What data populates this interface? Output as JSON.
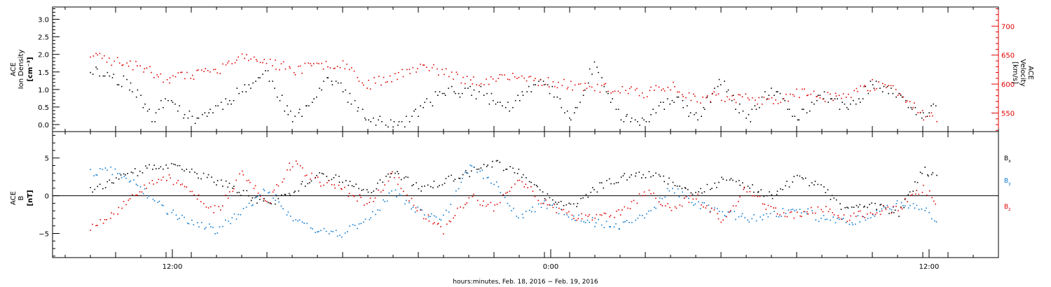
{
  "chart_data": [
    {
      "type": "scatter",
      "panel": "top",
      "ylabel_left": [
        "ACE",
        "Ion Density",
        "[cm⁻³]"
      ],
      "ylabel_right": [
        "ACE",
        "Velocity",
        "[km/s]"
      ],
      "yticks_left": [
        {
          "value": 0.0,
          "label": "0.0"
        },
        {
          "value": 0.5,
          "label": "0.5"
        },
        {
          "value": 1.0,
          "label": "1.0"
        },
        {
          "value": 1.5,
          "label": "1.5"
        },
        {
          "value": 2.0,
          "label": "2.0"
        },
        {
          "value": 2.5,
          "label": "2.5"
        },
        {
          "value": 3.0,
          "label": "3.0"
        }
      ],
      "yticks_right": [
        {
          "value": 550,
          "label": "550"
        },
        {
          "value": 600,
          "label": "600"
        },
        {
          "value": 650,
          "label": "650"
        },
        {
          "value": 700,
          "label": "700"
        }
      ],
      "ylim_left": [
        -0.2,
        3.35
      ],
      "ylim_right": [
        518,
        733
      ],
      "series": [
        {
          "axis": "left",
          "color": "#000000",
          "x_hours": [
            0.0,
            1.5,
            2.5,
            3.0,
            4.0,
            5.0,
            6.0,
            7.0,
            8.0,
            9.5,
            11.0,
            12.5,
            14.0,
            15.5,
            16.5,
            18.0,
            19.0,
            20.0,
            21.0,
            22.0,
            23.0,
            24.0,
            25.0,
            26.0,
            27.0,
            28.0,
            29.0,
            30.0,
            31.0,
            32.0,
            33.0,
            33.5
          ],
          "values": [
            1.6,
            1.2,
            0.2,
            0.8,
            0.15,
            0.5,
            1.0,
            1.5,
            0.1,
            1.4,
            0.1,
            0.1,
            1.0,
            0.9,
            0.5,
            1.3,
            0.15,
            1.8,
            0.2,
            0.1,
            0.8,
            0.2,
            1.2,
            0.15,
            1.0,
            0.2,
            0.9,
            0.4,
            1.2,
            0.8,
            0.3,
            0.5
          ]
        },
        {
          "axis": "right",
          "color": "#e00000",
          "x_hours": [
            0.0,
            1.0,
            2.0,
            3.0,
            4.0,
            5.0,
            6.0,
            7.0,
            8.0,
            9.0,
            10.0,
            11.0,
            12.0,
            13.0,
            14.0,
            15.0,
            16.0,
            17.0,
            18.0,
            19.0,
            20.0,
            21.0,
            22.0,
            23.0,
            24.0,
            25.0,
            26.0,
            27.0,
            28.0,
            29.0,
            30.0,
            31.0,
            32.0,
            33.0,
            33.5
          ],
          "values": [
            650,
            640,
            630,
            610,
            615,
            625,
            645,
            640,
            625,
            632,
            638,
            600,
            615,
            630,
            622,
            605,
            610,
            612,
            605,
            600,
            595,
            590,
            585,
            600,
            575,
            580,
            575,
            570,
            585,
            580,
            580,
            600,
            590,
            545,
            545
          ]
        }
      ]
    },
    {
      "type": "scatter",
      "panel": "bottom",
      "ylabel_left": [
        "ACE",
        "B",
        "[nT]"
      ],
      "yticks_left": [
        {
          "value": -5,
          "label": "−5"
        },
        {
          "value": 0,
          "label": "0"
        },
        {
          "value": 5,
          "label": "5"
        }
      ],
      "ylim_left": [
        -8.2,
        8.5
      ],
      "zero_line": true,
      "series": [
        {
          "name": "Bx",
          "color": "#000000",
          "x_hours": [
            0.0,
            1.0,
            2.0,
            3.0,
            4.0,
            5.0,
            6.0,
            7.0,
            8.0,
            9.0,
            10.0,
            11.0,
            12.0,
            13.0,
            14.0,
            15.0,
            16.0,
            17.0,
            18.0,
            19.0,
            20.0,
            21.0,
            22.0,
            23.0,
            24.0,
            25.0,
            26.0,
            27.0,
            28.0,
            29.0,
            30.0,
            31.0,
            32.0,
            33.0,
            33.5
          ],
          "values": [
            1.0,
            2.0,
            3.5,
            4.0,
            3.2,
            2.0,
            0.5,
            -1.0,
            0.5,
            3.0,
            2.0,
            0.5,
            3.5,
            1.0,
            2.0,
            3.0,
            4.5,
            3.0,
            0.0,
            -1.5,
            1.0,
            2.5,
            3.0,
            2.0,
            0.5,
            2.0,
            1.5,
            0.0,
            2.5,
            1.0,
            -2.0,
            -1.0,
            -2.5,
            3.5,
            2.8
          ]
        },
        {
          "name": "By",
          "color": "#0a78d0",
          "x_hours": [
            0.0,
            1.0,
            2.0,
            3.0,
            4.0,
            5.0,
            6.0,
            7.0,
            8.0,
            9.0,
            10.0,
            11.0,
            12.0,
            13.0,
            14.0,
            15.0,
            16.0,
            17.0,
            18.0,
            19.0,
            20.0,
            21.0,
            22.0,
            23.0,
            24.0,
            25.0,
            26.0,
            27.0,
            28.0,
            29.0,
            30.0,
            31.0,
            32.0,
            33.0,
            33.5
          ],
          "values": [
            3.0,
            3.5,
            1.0,
            -2.0,
            -3.5,
            -4.5,
            -2.0,
            1.0,
            -3.0,
            -4.5,
            -5.0,
            -3.0,
            0.5,
            -2.0,
            -3.0,
            4.0,
            2.0,
            -3.0,
            -1.0,
            -2.5,
            -3.5,
            -4.0,
            -2.5,
            1.0,
            -1.0,
            -2.0,
            -3.0,
            -2.5,
            -1.5,
            -3.0,
            -3.5,
            -2.5,
            -1.0,
            -1.5,
            -3.5
          ]
        },
        {
          "name": "Bz",
          "color": "#e00000",
          "x_hours": [
            0.0,
            1.0,
            2.0,
            3.0,
            4.0,
            5.0,
            6.0,
            7.0,
            8.0,
            9.0,
            10.0,
            11.0,
            12.0,
            13.0,
            14.0,
            15.0,
            16.0,
            17.0,
            18.0,
            19.0,
            20.0,
            21.0,
            22.0,
            23.0,
            24.0,
            25.0,
            26.0,
            27.0,
            28.0,
            29.0,
            30.0,
            31.0,
            32.0,
            33.0,
            33.5
          ],
          "values": [
            -4.0,
            -2.0,
            1.0,
            2.5,
            0.5,
            -2.0,
            3.0,
            -1.0,
            4.5,
            2.0,
            1.0,
            -1.0,
            3.0,
            -2.0,
            -4.5,
            0.0,
            -1.5,
            2.0,
            -1.0,
            -2.5,
            -3.0,
            -2.0,
            0.5,
            -1.5,
            0.0,
            -3.0,
            1.0,
            -2.0,
            -2.5,
            -1.5,
            -3.0,
            -2.0,
            -1.5,
            1.0,
            -0.5
          ]
        }
      ],
      "legend": [
        {
          "text": "Bx",
          "base": "B",
          "sub": "x",
          "color": "#000000"
        },
        {
          "text": "By",
          "base": "B",
          "sub": "y",
          "color": "#0a78d0"
        },
        {
          "text": "Bz",
          "base": "B",
          "sub": "z",
          "color": "#e00000"
        }
      ]
    }
  ],
  "x_axis": {
    "range_hours": [
      -1.5,
      36.0
    ],
    "ticks": [
      {
        "hour": 3.25,
        "label": "12:00"
      },
      {
        "hour": 18.25,
        "label": "0:00"
      },
      {
        "hour": 33.25,
        "label": "12:00"
      }
    ],
    "xlabel": "hours:minutes, Feb. 18, 2016 − Feb. 19, 2016"
  }
}
